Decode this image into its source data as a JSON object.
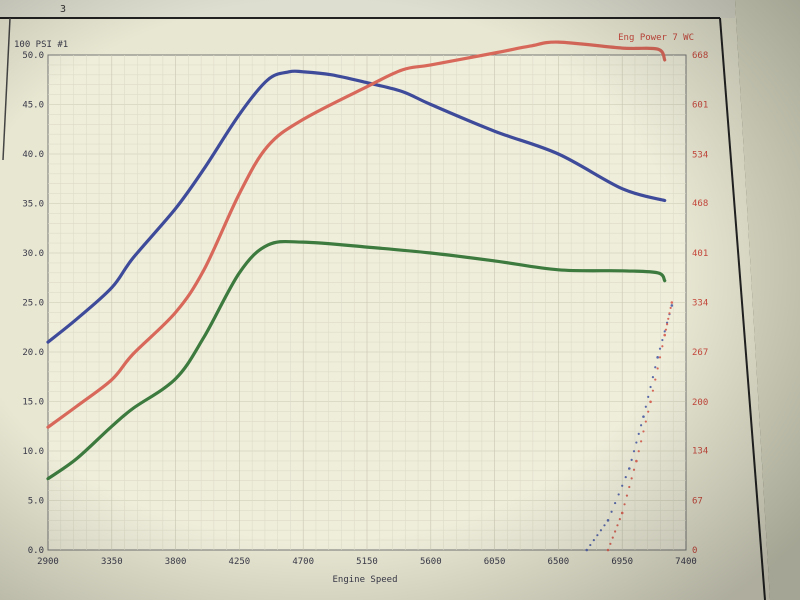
{
  "header": {
    "page_number": "3"
  },
  "chart_data": {
    "type": "line",
    "xlabel": "Engine Speed",
    "left_axis_title": "100 PSI #1",
    "right_axis_title": "Eng Power 7 WC",
    "x_ticks": [
      "2900",
      "3350",
      "3800",
      "4250",
      "4700",
      "5150",
      "5600",
      "6050",
      "6500",
      "6950",
      "7400"
    ],
    "y_left_ticks": [
      "0.0",
      "5.0",
      "10.0",
      "15.0",
      "20.0",
      "25.0",
      "30.0",
      "35.0",
      "40.0",
      "45.0",
      "50.0"
    ],
    "y_right_ticks": [
      "0",
      "67",
      "134",
      "200",
      "267",
      "334",
      "401",
      "468",
      "534",
      "601",
      "668"
    ],
    "xlim": [
      2900,
      7400
    ],
    "ylim_left": [
      0,
      50
    ],
    "ylim_right": [
      0,
      668
    ],
    "grid": true,
    "series": [
      {
        "color": "#3e4a9a",
        "axis": "left",
        "values": [
          [
            2900,
            21.0
          ],
          [
            3100,
            23.3
          ],
          [
            3350,
            26.5
          ],
          [
            3500,
            29.5
          ],
          [
            3800,
            34.5
          ],
          [
            4000,
            38.5
          ],
          [
            4250,
            44.0
          ],
          [
            4450,
            47.5
          ],
          [
            4600,
            48.3
          ],
          [
            4700,
            48.3
          ],
          [
            4900,
            48.0
          ],
          [
            5150,
            47.2
          ],
          [
            5400,
            46.3
          ],
          [
            5600,
            45.0
          ],
          [
            6050,
            42.3
          ],
          [
            6500,
            40.0
          ],
          [
            6950,
            36.5
          ],
          [
            7250,
            35.3
          ]
        ]
      },
      {
        "color": "#d8685a",
        "axis": "left",
        "values": [
          [
            2900,
            12.4
          ],
          [
            3100,
            14.5
          ],
          [
            3350,
            17.2
          ],
          [
            3500,
            19.8
          ],
          [
            3800,
            24.0
          ],
          [
            4000,
            28.3
          ],
          [
            4250,
            36.0
          ],
          [
            4450,
            40.8
          ],
          [
            4700,
            43.5
          ],
          [
            5150,
            46.8
          ],
          [
            5400,
            48.5
          ],
          [
            5600,
            49.0
          ],
          [
            6050,
            50.2
          ],
          [
            6300,
            50.9
          ],
          [
            6500,
            51.3
          ],
          [
            6950,
            50.7
          ],
          [
            7200,
            50.6
          ],
          [
            7250,
            49.5
          ]
        ]
      },
      {
        "color": "#3c7a3e",
        "axis": "left",
        "values": [
          [
            2900,
            7.2
          ],
          [
            3100,
            9.2
          ],
          [
            3350,
            12.5
          ],
          [
            3500,
            14.3
          ],
          [
            3800,
            17.3
          ],
          [
            4000,
            21.5
          ],
          [
            4250,
            28.0
          ],
          [
            4450,
            30.8
          ],
          [
            4700,
            31.1
          ],
          [
            5150,
            30.6
          ],
          [
            5600,
            30.0
          ],
          [
            6050,
            29.2
          ],
          [
            6500,
            28.3
          ],
          [
            6950,
            28.2
          ],
          [
            7200,
            28.0
          ],
          [
            7250,
            27.2
          ]
        ]
      },
      {
        "color": "#5a6aaa",
        "axis": "right",
        "style": "dotted",
        "values": [
          [
            6700,
            0
          ],
          [
            6850,
            40
          ],
          [
            7000,
            110
          ],
          [
            7100,
            180
          ],
          [
            7200,
            260
          ],
          [
            7300,
            330
          ]
        ]
      },
      {
        "color": "#d8685a",
        "axis": "right",
        "style": "dotted",
        "values": [
          [
            6850,
            0
          ],
          [
            6950,
            50
          ],
          [
            7050,
            120
          ],
          [
            7150,
            200
          ],
          [
            7250,
            290
          ],
          [
            7300,
            334
          ]
        ]
      }
    ]
  }
}
